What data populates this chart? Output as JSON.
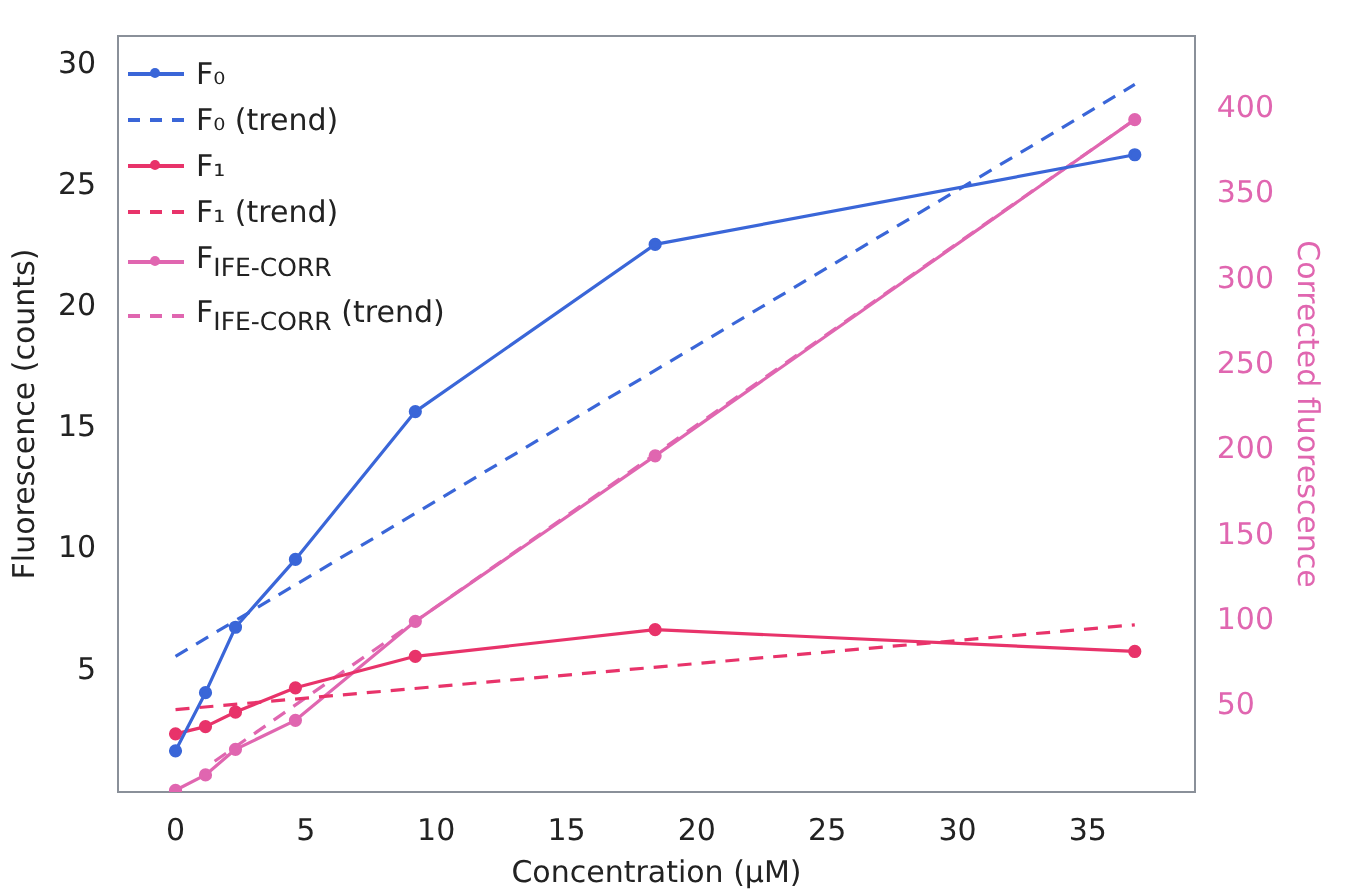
{
  "chart_data": {
    "type": "line",
    "xlabel": "Concentration (µM)",
    "ylabel": "Fluorescence (counts)",
    "y2label": "Corrected fluorescence",
    "xlim": [
      -2.2,
      39.1
    ],
    "xticks": [
      0,
      5,
      10,
      15,
      20,
      25,
      30,
      35
    ],
    "ylim": [
      0,
      31.2
    ],
    "yticks": [
      5,
      10,
      15,
      20,
      25,
      30
    ],
    "y2lim": [
      0,
      443
    ],
    "y2ticks": [
      50,
      100,
      150,
      200,
      250,
      300,
      350,
      400
    ],
    "grid": false,
    "legend": "top left",
    "series": [
      {
        "name": "F₀",
        "color": "#3a66d8",
        "marker": "circle",
        "line_style": "solid",
        "x": [
          0,
          1.15,
          2.3,
          4.6,
          9.2,
          18.4,
          36.8
        ],
        "values": [
          1.7,
          4.1,
          6.8,
          9.6,
          15.7,
          22.6,
          26.3
        ]
      },
      {
        "name": "F₀ (trend)",
        "color": "#3a66d8",
        "marker": "none",
        "line_style": "dashed",
        "x": [
          0,
          36.8
        ],
        "values": [
          5.6,
          29.2
        ]
      },
      {
        "name": "F₁",
        "color": "#e8336a",
        "marker": "circle",
        "line_style": "solid",
        "x": [
          0,
          1.15,
          2.3,
          4.6,
          9.2,
          18.4,
          36.8
        ],
        "values": [
          2.4,
          2.7,
          3.3,
          4.3,
          5.6,
          6.7,
          5.8
        ]
      },
      {
        "name": "F₁ (trend)",
        "color": "#e8336a",
        "marker": "none",
        "line_style": "dashed",
        "x": [
          0,
          36.8
        ],
        "values": [
          3.4,
          6.9
        ]
      },
      {
        "name": "F$_{IFE-CORR}$",
        "color": "#e066b0",
        "marker": "circle",
        "line_style": "solid",
        "axis": "y2",
        "x": [
          0,
          1.15,
          2.3,
          4.6,
          9.2,
          18.4,
          36.8
        ],
        "values": [
          1,
          10,
          25,
          42,
          100,
          197,
          394
        ]
      },
      {
        "name": "F$_{IFE-CORR}$ (trend)",
        "color": "#e066b0",
        "marker": "none",
        "line_style": "dashed",
        "axis": "y2",
        "x": [
          1.5,
          36.8
        ],
        "values": [
          18,
          394
        ]
      }
    ]
  }
}
